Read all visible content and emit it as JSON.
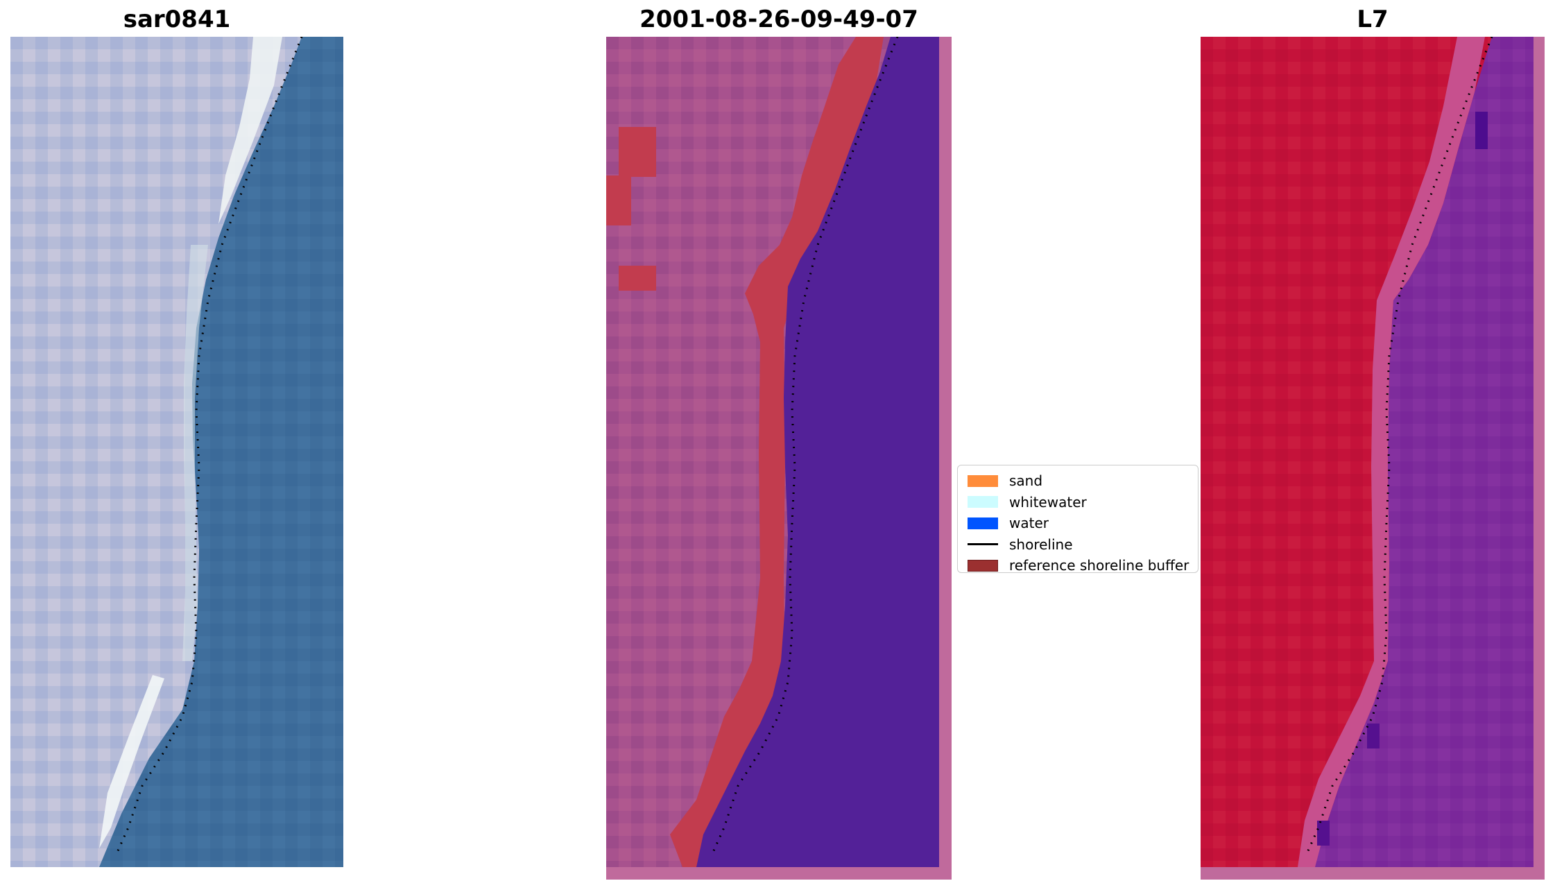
{
  "panels": {
    "rgb": {
      "title": "sar0841"
    },
    "classified": {
      "title": "2001-08-26-09-49-07"
    },
    "mndwi": {
      "title": "L7"
    }
  },
  "legend": {
    "items": [
      {
        "label": "sand",
        "color": "#ff8c3a",
        "kind": "patch"
      },
      {
        "label": "whitewater",
        "color": "#ccfcff",
        "kind": "patch"
      },
      {
        "label": "water",
        "color": "#0055ff",
        "kind": "patch"
      },
      {
        "label": "shoreline",
        "color": "#000000",
        "kind": "line"
      },
      {
        "label": "reference shoreline buffer",
        "color": "#9b3030",
        "kind": "patch"
      }
    ]
  },
  "colors": {
    "land_gray": "#b4bbd8",
    "sea_blue": "#3f6e9c",
    "beach_white": "#edf3f4",
    "land_mauve": "#a8528e",
    "buffer_red": "#c23c4e",
    "water_purple": "#532198",
    "frame_pink": "#c06a9c",
    "mndwi_red": "#c5123a",
    "mndwi_purple": "#7e2c9c"
  }
}
